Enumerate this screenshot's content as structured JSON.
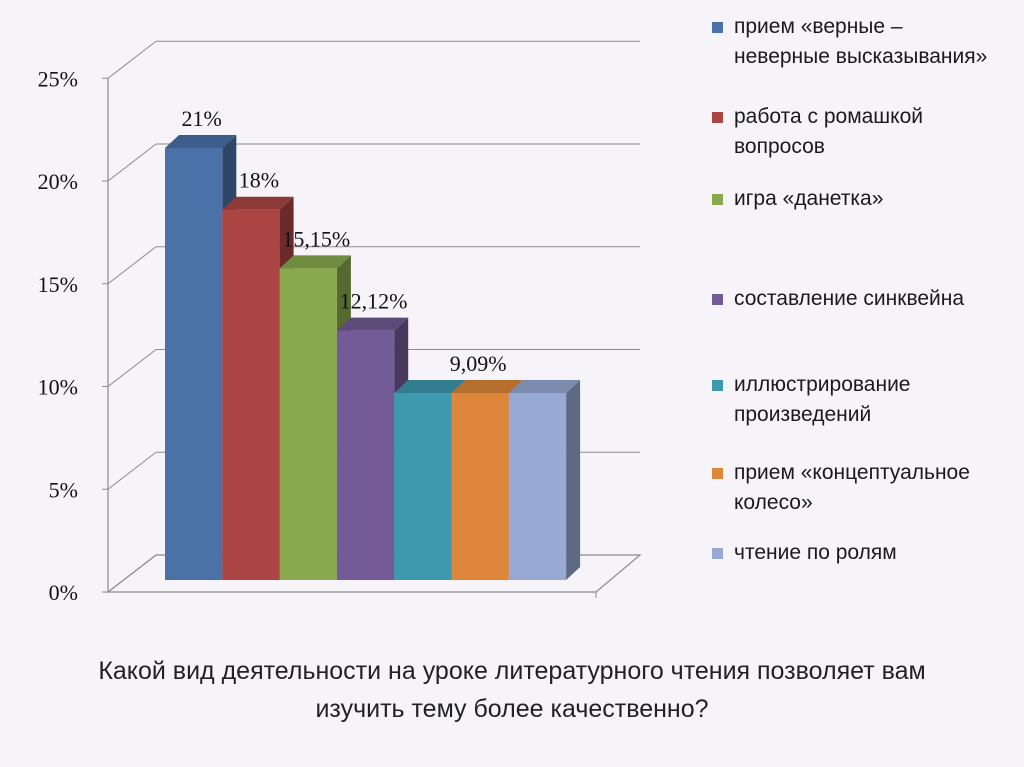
{
  "chart_data": {
    "type": "bar",
    "title": "",
    "xlabel": "",
    "ylabel": "",
    "ylim": [
      0,
      25
    ],
    "y_ticks": [
      "0%",
      "5%",
      "10%",
      "15%",
      "20%",
      "25%"
    ],
    "grid": true,
    "legend_position": "right",
    "series": [
      {
        "name": "прием «верные – неверные высказывания»",
        "value": 21,
        "label": "21%",
        "color": "#4a72a8"
      },
      {
        "name": "работа с ромашкой вопросов",
        "value": 18,
        "label": "18%",
        "color": "#ab4543"
      },
      {
        "name": "игра «данетка»",
        "value": 15.15,
        "label": "15,15%",
        "color": "#8aa94e"
      },
      {
        "name": "составление синквейна",
        "value": 12.12,
        "label": "12,12%",
        "color": "#725b96"
      },
      {
        "name": "иллюстрирование произведений",
        "value": 9.09,
        "label": "",
        "color": "#3d99ad"
      },
      {
        "name": "прием «концептуальное колесо»",
        "value": 9.09,
        "label": "9,09%",
        "color": "#de8639"
      },
      {
        "name": "чтение по ролям",
        "value": 9.09,
        "label": "",
        "color": "#98aad4"
      }
    ]
  },
  "question": "Какой вид деятельности на уроке литературного чтения позволяет вам изучить тему более качественно?"
}
